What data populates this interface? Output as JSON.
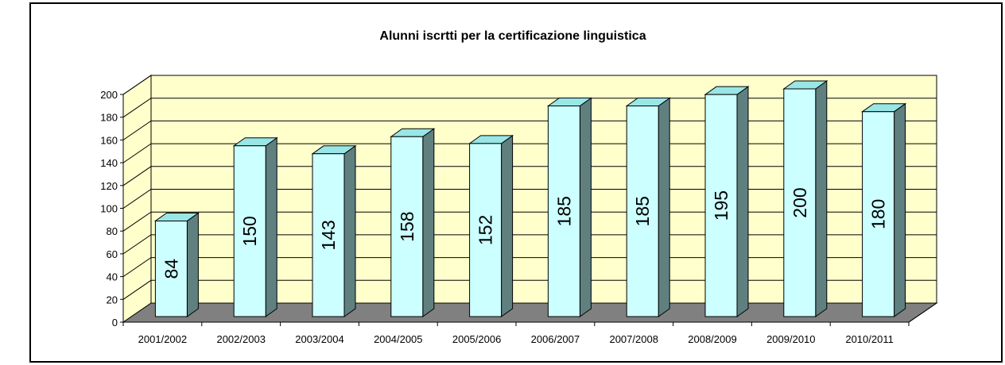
{
  "chart_data": {
    "type": "bar3d",
    "title": "Alunni iscrtti per la certificazione linguistica",
    "categories": [
      "2001/2002",
      "2002/2003",
      "2003/2004",
      "2004/2005",
      "2005/2006",
      "2006/2007",
      "2007/2008",
      "2008/2009",
      "2009/2010",
      "2010/2011"
    ],
    "values": [
      84,
      150,
      143,
      158,
      152,
      185,
      185,
      195,
      200,
      180
    ],
    "color": "#ccffff",
    "ylim": [
      0,
      200
    ],
    "yticks": [
      0,
      20,
      40,
      60,
      80,
      100,
      120,
      140,
      160,
      180,
      200
    ],
    "grid": true
  }
}
